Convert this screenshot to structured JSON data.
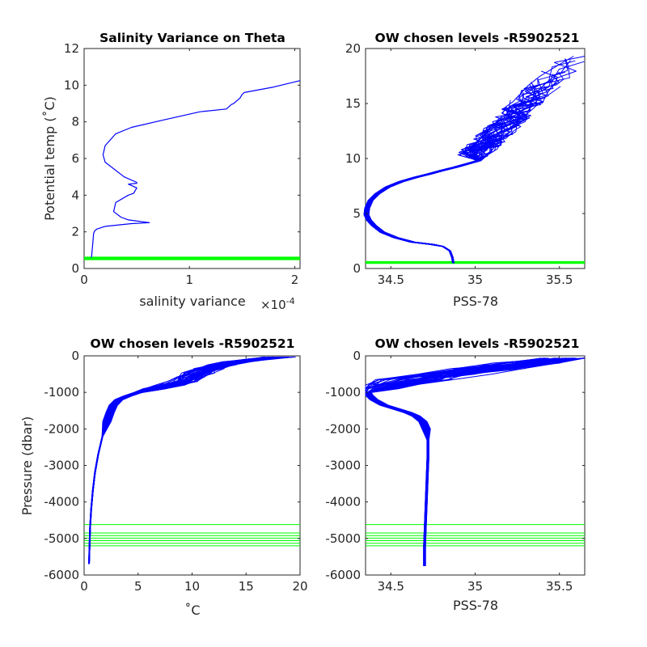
{
  "colors": {
    "profile": "#0000ff",
    "levels": "#00ff00",
    "axis": "#262626"
  },
  "chart_data": [
    {
      "id": "p1",
      "type": "line",
      "title": "Salinity Variance on Theta",
      "xlabel": "salinity variance",
      "x_exponent": "×10",
      "x_exponent_power": "-4",
      "ylabel": "Potential temp (˚C)",
      "xlim": [
        0,
        2.05
      ],
      "ylim": [
        0,
        12
      ],
      "xticks": [
        0,
        1,
        2
      ],
      "xtick_labels": [
        "0",
        "1",
        "2"
      ],
      "yticks": [
        0,
        2,
        4,
        6,
        8,
        10,
        12
      ],
      "ytick_labels": [
        "0",
        "2",
        "4",
        "6",
        "8",
        "10",
        "12"
      ],
      "series": [
        {
          "values_x": [
            0.07,
            0.08,
            0.09,
            0.1,
            0.12,
            0.2,
            0.45,
            0.62,
            0.42,
            0.35,
            0.28,
            0.3,
            0.42,
            0.47,
            0.5,
            0.42,
            0.5,
            0.5,
            0.38,
            0.2,
            0.18,
            0.2,
            0.3,
            0.45,
            0.75,
            1.1,
            1.35,
            1.4,
            1.42,
            1.48,
            1.5,
            1.52,
            1.8,
            2.05
          ],
          "values_y": [
            0.6,
            1.2,
            1.9,
            2.05,
            2.15,
            2.3,
            2.45,
            2.5,
            2.65,
            2.8,
            3.1,
            3.6,
            4.0,
            4.1,
            4.4,
            4.6,
            4.65,
            4.7,
            5.0,
            5.8,
            6.2,
            6.7,
            7.35,
            7.7,
            8.1,
            8.55,
            8.7,
            8.95,
            9.0,
            9.3,
            9.5,
            9.6,
            9.9,
            10.25
          ]
        }
      ],
      "levels": [
        0.5,
        0.55,
        0.6
      ]
    },
    {
      "id": "p2",
      "type": "line",
      "title": "OW chosen levels -R5902521",
      "xlabel": "PSS-78",
      "xlim": [
        34.35,
        35.65
      ],
      "ylim": [
        0,
        20
      ],
      "xticks": [
        34.5,
        35,
        35.5
      ],
      "xtick_labels": [
        "34.5",
        "35",
        "35.5"
      ],
      "yticks": [
        0,
        5,
        10,
        15,
        20
      ],
      "ytick_labels": [
        "0",
        "5",
        "10",
        "15",
        "20"
      ],
      "base_profile": {
        "s": [
          34.87,
          34.865,
          34.85,
          34.81,
          34.74,
          34.63,
          34.53,
          34.45,
          34.4,
          34.37,
          34.355,
          34.36,
          34.38,
          34.42,
          34.48,
          34.56,
          34.65,
          34.73,
          34.8,
          34.88,
          34.95,
          35.02
        ],
        "t": [
          0.5,
          1.0,
          1.6,
          2.0,
          2.2,
          2.4,
          2.8,
          3.3,
          3.9,
          4.4,
          4.9,
          5.5,
          6.2,
          6.8,
          7.4,
          7.9,
          8.3,
          8.6,
          8.9,
          9.2,
          9.5,
          9.8
        ]
      },
      "levels": [
        0.5,
        0.55,
        0.6
      ]
    },
    {
      "id": "p3",
      "type": "line",
      "title": "OW chosen levels -R5902521",
      "xlabel": "˚C",
      "ylabel": "Pressure (dbar)",
      "xlim": [
        0,
        20
      ],
      "ylim": [
        -6000,
        0
      ],
      "xticks": [
        0,
        5,
        10,
        15,
        20
      ],
      "xtick_labels": [
        "0",
        "5",
        "10",
        "15",
        "20"
      ],
      "yticks": [
        -6000,
        -5000,
        -4000,
        -3000,
        -2000,
        -1000,
        0
      ],
      "ytick_labels": [
        "-6000",
        "-5000",
        "-4000",
        "-3000",
        "-2000",
        "-1000",
        "0"
      ],
      "base_profile": {
        "x": [
          0.45,
          0.5,
          0.55,
          0.65,
          0.8,
          1.0,
          1.3,
          1.7,
          2.1,
          2.4,
          2.7,
          3.2,
          4.0,
          5.0,
          6.5,
          8.0,
          9.0,
          9.8,
          10.5,
          11.5,
          12.5,
          14.0,
          16.0,
          18.0
        ],
        "p": [
          -5700,
          -5200,
          -4700,
          -4200,
          -3700,
          -3200,
          -2700,
          -2200,
          -1800,
          -1550,
          -1350,
          -1200,
          -1100,
          -1000,
          -900,
          -800,
          -700,
          -580,
          -470,
          -350,
          -250,
          -160,
          -90,
          -30
        ]
      },
      "levels": [
        -4620,
        -4850,
        -4920,
        -4990,
        -5060,
        -5130,
        -5200
      ]
    },
    {
      "id": "p4",
      "type": "line",
      "title": "OW chosen levels -R5902521",
      "xlabel": "PSS-78",
      "xlim": [
        34.35,
        35.65
      ],
      "ylim": [
        -6000,
        0
      ],
      "xticks": [
        34.5,
        35,
        35.5
      ],
      "xtick_labels": [
        "34.5",
        "35",
        "35.5"
      ],
      "yticks": [
        -6000,
        -5000,
        -4000,
        -3000,
        -2000,
        -1000,
        0
      ],
      "ytick_labels": [
        "-6000",
        "-5000",
        "-4000",
        "-3000",
        "-2000",
        "-1000",
        "0"
      ],
      "base_profile": {
        "s": [
          34.7,
          34.7,
          34.705,
          34.71,
          34.715,
          34.72,
          34.72,
          34.71,
          34.69,
          34.65,
          34.6,
          34.53,
          34.46,
          34.4,
          34.37,
          34.36,
          34.4,
          34.5,
          34.65,
          34.85,
          35.1,
          35.35,
          35.6
        ],
        "p": [
          -5750,
          -5200,
          -4600,
          -4000,
          -3400,
          -2800,
          -2300,
          -2000,
          -1800,
          -1650,
          -1550,
          -1450,
          -1350,
          -1200,
          -1080,
          -1000,
          -900,
          -800,
          -650,
          -500,
          -350,
          -200,
          -60
        ]
      },
      "levels": [
        -4620,
        -4850,
        -4920,
        -4990,
        -5060,
        -5130,
        -5200
      ]
    }
  ]
}
